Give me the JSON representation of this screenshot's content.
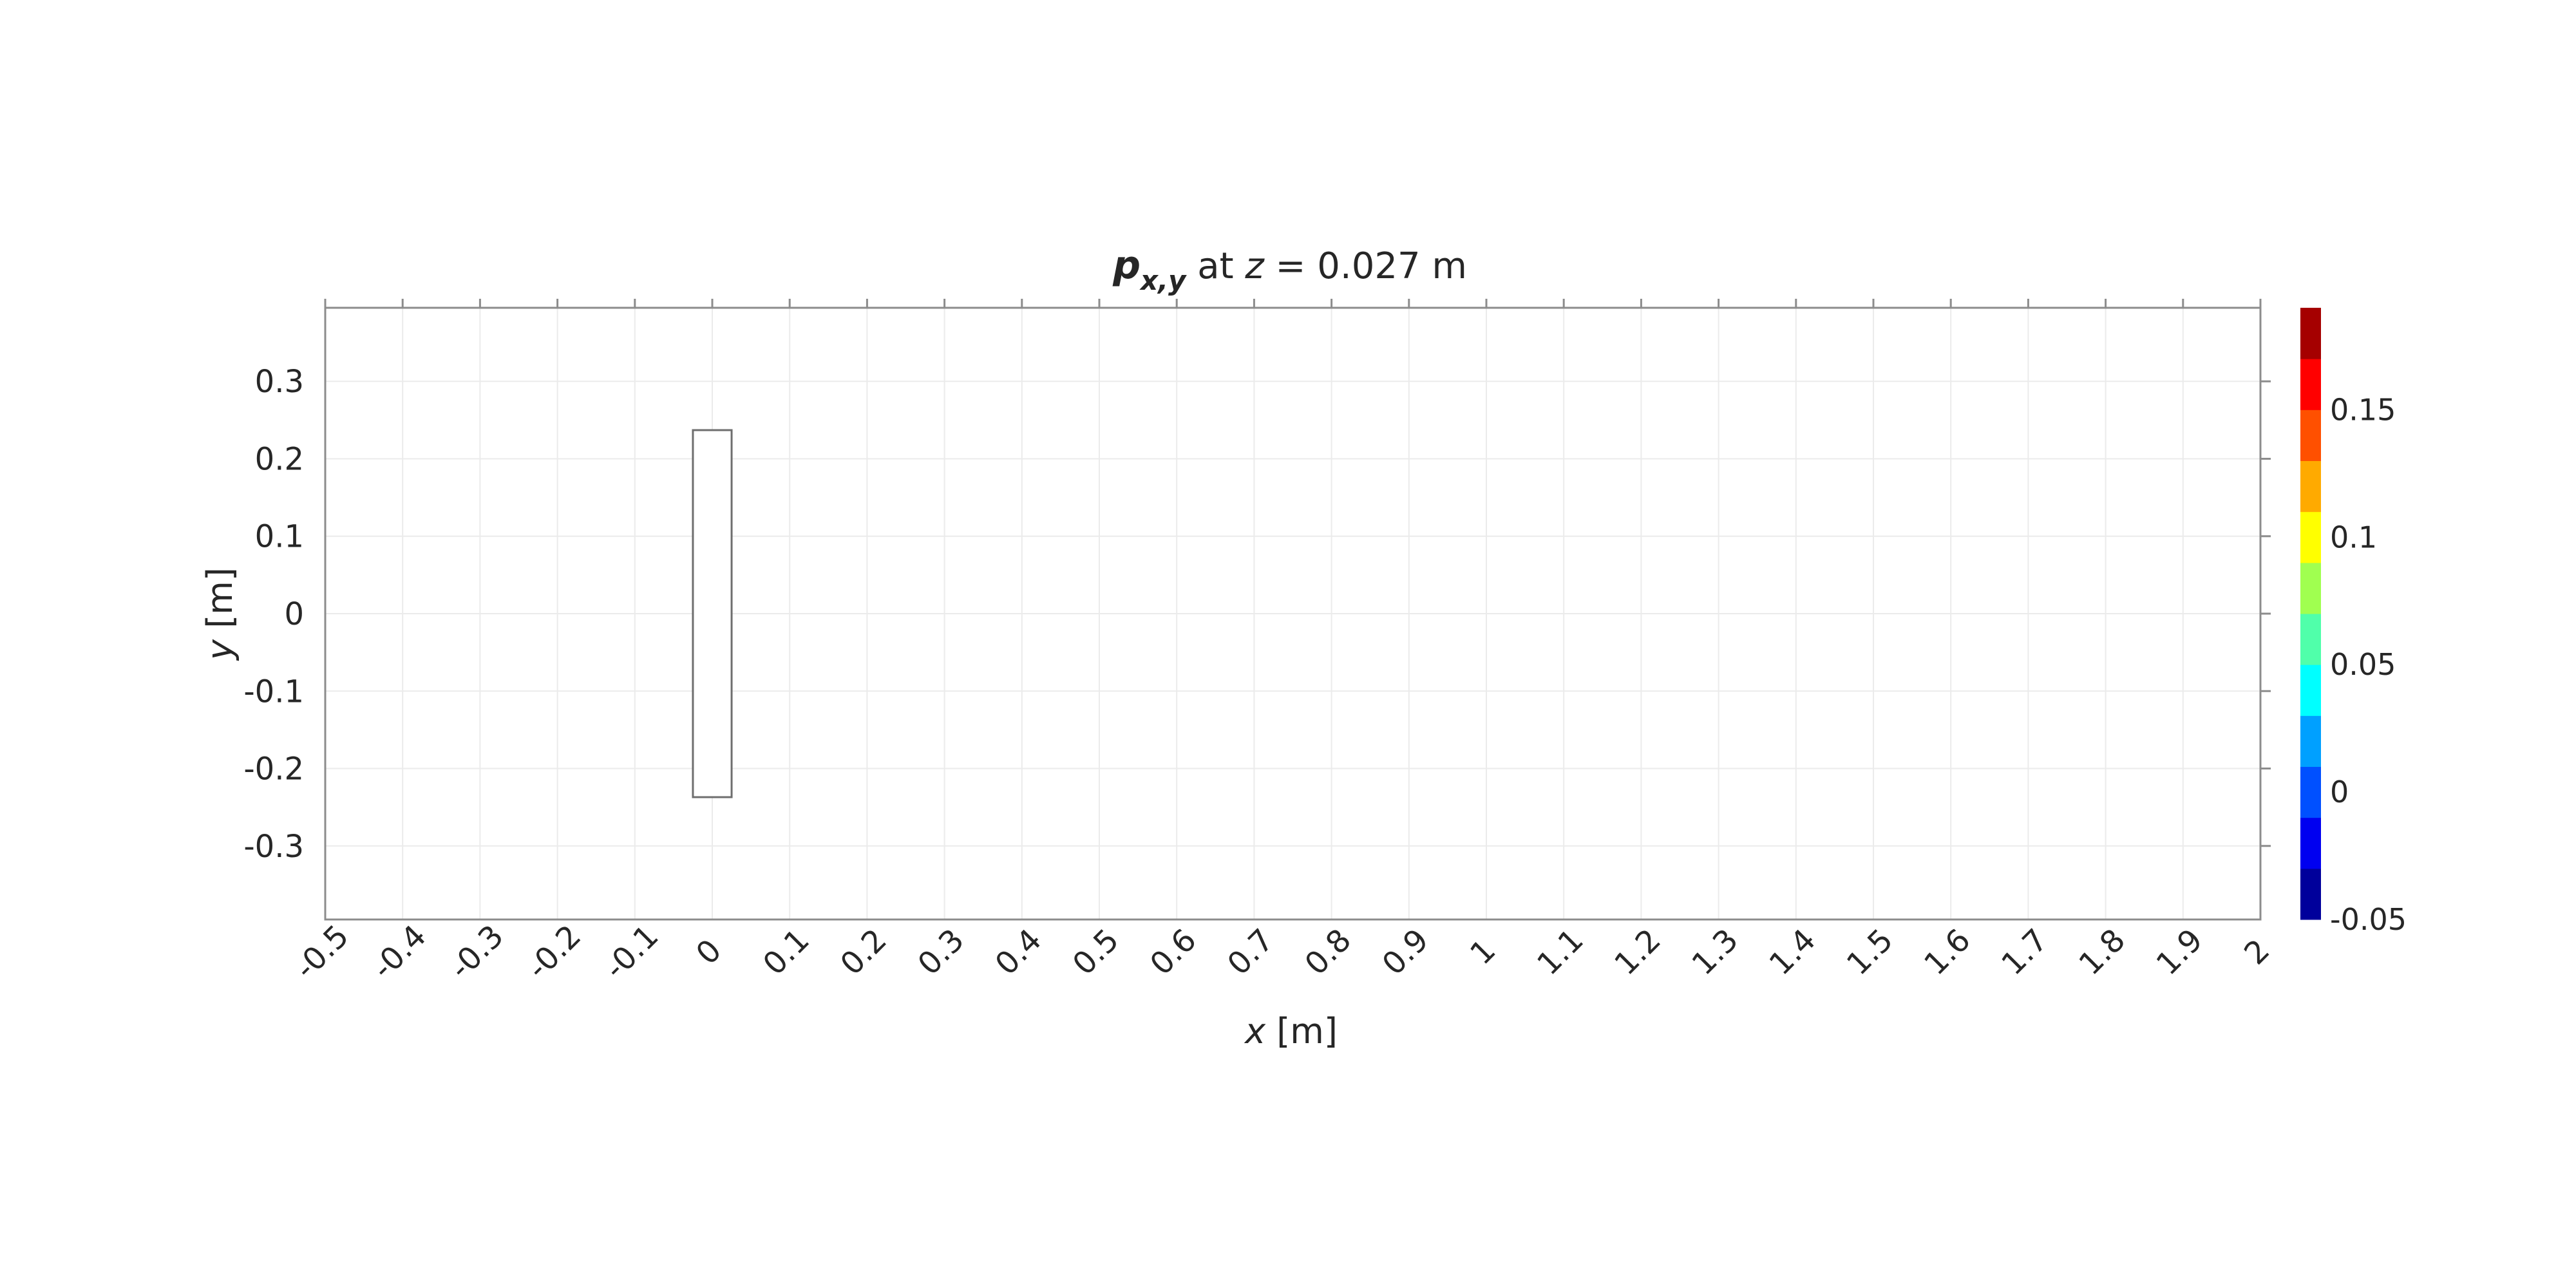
{
  "chart_data": {
    "type": "heatmap",
    "title": {
      "symbol": "p",
      "subscript": "x,y",
      "middle": " at ",
      "variable": "z",
      "rest": " = 0.027 m"
    },
    "xlabel": {
      "variable": "x",
      "unit": " [m]"
    },
    "ylabel": {
      "variable": "y",
      "unit": " [m]"
    },
    "xlim": [
      -0.5,
      2.0
    ],
    "ylim": [
      -0.395,
      0.395
    ],
    "x_ticks": [
      "-0.5",
      "-0.4",
      "-0.3",
      "-0.2",
      "-0.1",
      "0",
      "0.1",
      "0.2",
      "0.3",
      "0.4",
      "0.5",
      "0.6",
      "0.7",
      "0.8",
      "0.9",
      "1",
      "1.1",
      "1.2",
      "1.3",
      "1.4",
      "1.5",
      "1.6",
      "1.7",
      "1.8",
      "1.9",
      "2"
    ],
    "x_tick_values": [
      -0.5,
      -0.4,
      -0.3,
      -0.2,
      -0.1,
      0,
      0.1,
      0.2,
      0.3,
      0.4,
      0.5,
      0.6,
      0.7,
      0.8,
      0.9,
      1.0,
      1.1,
      1.2,
      1.3,
      1.4,
      1.5,
      1.6,
      1.7,
      1.8,
      1.9,
      2.0
    ],
    "y_ticks": [
      "0.3",
      "0.2",
      "0.1",
      "0",
      "-0.1",
      "-0.2",
      "-0.3"
    ],
    "y_tick_values": [
      0.3,
      0.2,
      0.1,
      0,
      -0.1,
      -0.2,
      -0.3
    ],
    "grid": true,
    "source_rect": {
      "x0": -0.025,
      "x1": 0.025,
      "y0": -0.237,
      "y1": 0.237
    },
    "colorbar": {
      "range": [
        -0.05,
        0.19
      ],
      "levels": [
        {
          "from": -0.05,
          "to": -0.03,
          "color": "#00009b"
        },
        {
          "from": -0.03,
          "to": -0.01,
          "color": "#0000f0"
        },
        {
          "from": -0.01,
          "to": 0.01,
          "color": "#0050ff"
        },
        {
          "from": 0.01,
          "to": 0.03,
          "color": "#00a0ff"
        },
        {
          "from": 0.03,
          "to": 0.05,
          "color": "#00ffff"
        },
        {
          "from": 0.05,
          "to": 0.07,
          "color": "#50ffaa"
        },
        {
          "from": 0.07,
          "to": 0.09,
          "color": "#a0ff50"
        },
        {
          "from": 0.09,
          "to": 0.11,
          "color": "#ffff00"
        },
        {
          "from": 0.11,
          "to": 0.13,
          "color": "#ffaa00"
        },
        {
          "from": 0.13,
          "to": 0.15,
          "color": "#ff5000"
        },
        {
          "from": 0.15,
          "to": 0.17,
          "color": "#ff0000"
        },
        {
          "from": 0.17,
          "to": 0.19,
          "color": "#a50000"
        }
      ],
      "ticks": [
        {
          "label": "0.15",
          "value": 0.15
        },
        {
          "label": "0.1",
          "value": 0.1
        },
        {
          "label": "0.05",
          "value": 0.05
        },
        {
          "label": "0",
          "value": 0.0
        },
        {
          "label": "-0.05",
          "value": -0.05
        }
      ]
    }
  }
}
